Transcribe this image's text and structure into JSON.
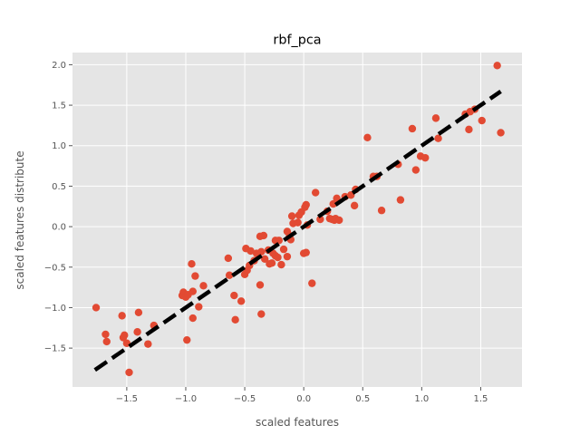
{
  "chart_data": {
    "type": "scatter",
    "title": "rbf_pca",
    "xlabel": "scaled features",
    "ylabel": "scaled features distribute",
    "xlim": [
      -1.96,
      1.85
    ],
    "ylim": [
      -1.98,
      2.15
    ],
    "xticks": [
      -1.5,
      -1.0,
      -0.5,
      0.0,
      0.5,
      1.0,
      1.5
    ],
    "xtick_labels": [
      "−1.5",
      "−1.0",
      "−0.5",
      "0.0",
      "0.5",
      "1.0",
      "1.5"
    ],
    "yticks": [
      -1.5,
      -1.0,
      -0.5,
      0.0,
      0.5,
      1.0,
      1.5,
      2.0
    ],
    "ytick_labels": [
      "−1.5",
      "−1.0",
      "−0.5",
      "0.0",
      "0.5",
      "1.0",
      "1.5",
      "2.0"
    ],
    "grid": true,
    "legend": "none",
    "colors": {
      "plot_background": "#e5e5e5",
      "grid": "#ffffff",
      "point": "#e24a33",
      "line": "#000000"
    },
    "series": [
      {
        "kind": "points",
        "x": [
          -1.76,
          -1.68,
          -1.67,
          -1.54,
          -1.53,
          -1.52,
          -1.5,
          -1.48,
          -1.41,
          -1.4,
          -1.32,
          -1.27,
          -1.03,
          -1.02,
          -1.0,
          -0.99,
          -0.98,
          -0.95,
          -0.94,
          -0.94,
          -0.92,
          -0.89,
          -0.85,
          -0.64,
          -0.63,
          -0.59,
          -0.58,
          -0.53,
          -0.5,
          -0.49,
          -0.48,
          -0.46,
          -0.45,
          -0.42,
          -0.4,
          -0.37,
          -0.37,
          -0.36,
          -0.36,
          -0.34,
          -0.33,
          -0.3,
          -0.29,
          -0.27,
          -0.26,
          -0.24,
          -0.24,
          -0.22,
          -0.21,
          -0.19,
          -0.17,
          -0.14,
          -0.14,
          -0.12,
          -0.11,
          -0.1,
          -0.09,
          -0.05,
          -0.04,
          -0.02,
          0.0,
          0.01,
          0.02,
          0.02,
          0.03,
          0.07,
          0.1,
          0.14,
          0.2,
          0.22,
          0.24,
          0.25,
          0.26,
          0.27,
          0.28,
          0.3,
          0.35,
          0.4,
          0.43,
          0.44,
          0.54,
          0.59,
          0.62,
          0.66,
          0.8,
          0.82,
          0.92,
          0.95,
          0.99,
          1.03,
          1.12,
          1.14,
          1.37,
          1.4,
          1.41,
          1.45,
          1.51,
          1.64,
          1.67
        ],
        "y": [
          -1.0,
          -1.33,
          -1.42,
          -1.1,
          -1.37,
          -1.34,
          -1.44,
          -1.8,
          -1.3,
          -1.06,
          -1.45,
          -1.22,
          -0.85,
          -0.81,
          -0.87,
          -1.4,
          -0.84,
          -0.46,
          -1.13,
          -0.8,
          -0.61,
          -0.99,
          -0.73,
          -0.39,
          -0.6,
          -0.85,
          -1.15,
          -0.92,
          -0.59,
          -0.27,
          -0.54,
          -0.48,
          -0.3,
          -0.42,
          -0.33,
          -0.12,
          -0.72,
          -1.08,
          -0.31,
          -0.11,
          -0.4,
          -0.29,
          -0.46,
          -0.45,
          -0.33,
          -0.36,
          -0.17,
          -0.38,
          -0.17,
          -0.47,
          -0.28,
          -0.37,
          -0.06,
          -0.11,
          -0.16,
          0.13,
          0.04,
          0.05,
          0.14,
          0.18,
          -0.33,
          0.24,
          0.27,
          -0.32,
          0.02,
          -0.7,
          0.42,
          0.09,
          0.19,
          0.1,
          0.09,
          0.28,
          0.08,
          0.1,
          0.35,
          0.08,
          0.37,
          0.39,
          0.26,
          0.46,
          1.1,
          0.62,
          0.62,
          0.2,
          0.77,
          0.33,
          1.21,
          0.7,
          0.87,
          0.85,
          1.34,
          1.09,
          1.39,
          1.2,
          1.42,
          1.45,
          1.31,
          1.99,
          1.16
        ]
      },
      {
        "kind": "dashed-line",
        "x": [
          -1.77,
          1.67
        ],
        "y": [
          -1.77,
          1.67
        ]
      }
    ]
  }
}
